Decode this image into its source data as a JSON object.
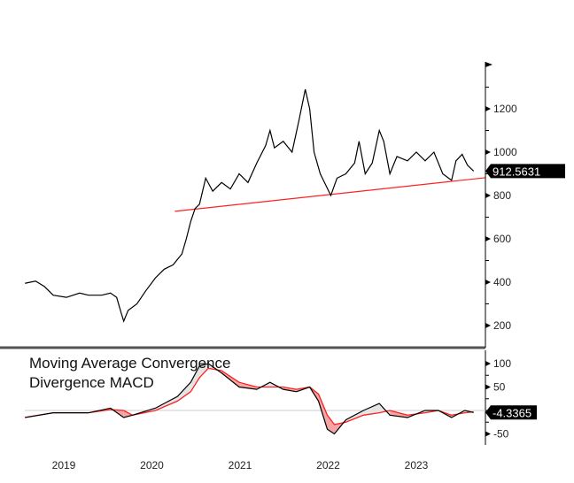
{
  "chart_data": [
    {
      "type": "line",
      "panel": "price",
      "y_ticks": [
        200,
        400,
        600,
        800,
        1000,
        1200
      ],
      "ylim": [
        130,
        1390
      ],
      "last_value_label": "912.5631",
      "colors": {
        "price": "#000000",
        "trendline": "#ff2020",
        "last_value_bg": "#000000"
      },
      "series": [
        {
          "x": [
            2018.56,
            2018.68,
            2018.78,
            2018.88,
            2019.03,
            2019.18,
            2019.28,
            2019.43,
            2019.53,
            2019.6,
            2019.65,
            2019.68,
            2019.73,
            2019.83,
            2019.93,
            2020.04,
            2020.14,
            2020.24,
            2020.34,
            2020.39,
            2020.44,
            2020.49,
            2020.54,
            2020.61,
            2020.69,
            2020.79,
            2020.89,
            2020.99,
            2021.09,
            2021.19,
            2021.29,
            2021.34,
            2021.39,
            2021.49,
            2021.59,
            2021.67,
            2021.74,
            2021.79,
            2021.84,
            2021.91,
            2021.97,
            2022.03,
            2022.1,
            2022.2,
            2022.3,
            2022.35,
            2022.42,
            2022.5,
            2022.58,
            2022.63,
            2022.7,
            2022.78,
            2022.9,
            2023.0,
            2023.1,
            2023.2,
            2023.3,
            2023.4,
            2023.45,
            2023.52,
            2023.58,
            2023.65
          ],
          "y": [
            395,
            405,
            380,
            340,
            330,
            350,
            340,
            340,
            350,
            330,
            260,
            220,
            270,
            300,
            360,
            420,
            460,
            480,
            530,
            600,
            680,
            740,
            760,
            880,
            820,
            860,
            830,
            900,
            860,
            950,
            1030,
            1100,
            1020,
            1050,
            1000,
            1150,
            1290,
            1200,
            1000,
            900,
            850,
            800,
            880,
            900,
            950,
            1050,
            900,
            950,
            1100,
            1050,
            900,
            980,
            960,
            1000,
            960,
            1000,
            900,
            870,
            960,
            990,
            940,
            912.5631
          ]
        }
      ],
      "trendline": {
        "x": [
          2020.26,
          2023.78
        ],
        "y": [
          727,
          882
        ]
      }
    },
    {
      "type": "line",
      "panel": "macd",
      "title": "Moving Average Convergence Divergence MACD",
      "y_ticks": [
        -50,
        50,
        100
      ],
      "ylim": [
        -70,
        120
      ],
      "last_value_label": "-4.3365",
      "colors": {
        "macd": "#000000",
        "signal": "#ff2020",
        "fill_negative": "#f4a6a6",
        "fill_positive": "#e4e4e4",
        "zero_line": "#cccccc"
      },
      "series": [
        {
          "x": [
            2018.56,
            2018.88,
            2019.28,
            2019.53,
            2019.68,
            2019.78,
            2020.04,
            2020.29,
            2020.44,
            2020.54,
            2020.64,
            2020.79,
            2020.99,
            2021.19,
            2021.34,
            2021.49,
            2021.64,
            2021.79,
            2021.89,
            2021.99,
            2022.07,
            2022.2,
            2022.4,
            2022.58,
            2022.7,
            2022.9,
            2023.1,
            2023.25,
            2023.4,
            2023.55,
            2023.65
          ],
          "macd": [
            -15,
            -5,
            -5,
            5,
            -15,
            -10,
            5,
            30,
            60,
            95,
            100,
            80,
            50,
            45,
            60,
            45,
            40,
            50,
            20,
            -40,
            -50,
            -20,
            0,
            15,
            -10,
            -15,
            0,
            0,
            -15,
            0,
            -4.3365
          ],
          "signal": [
            -15,
            -5,
            -5,
            2,
            0,
            -10,
            0,
            20,
            40,
            70,
            90,
            85,
            60,
            50,
            50,
            50,
            45,
            50,
            35,
            -10,
            -30,
            -25,
            -10,
            -5,
            0,
            -10,
            -5,
            0,
            -10,
            -5,
            -3
          ]
        }
      ]
    }
  ],
  "x_axis": {
    "ticks": [
      "2019",
      "2020",
      "2021",
      "2022",
      "2023"
    ],
    "tick_values": [
      2019,
      2020,
      2021,
      2022,
      2023
    ]
  }
}
